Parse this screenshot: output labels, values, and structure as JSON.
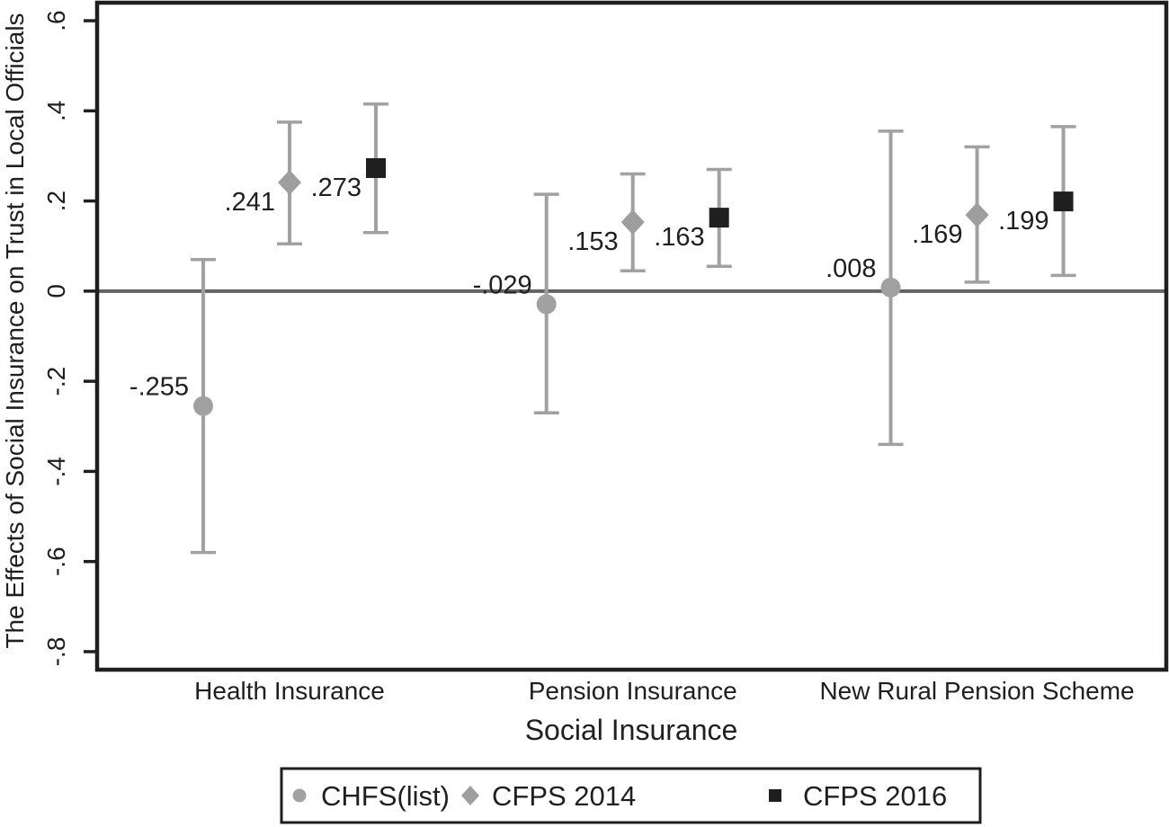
{
  "figure": {
    "background": "#ffffff",
    "text_color": "#1f1f1f",
    "frame_color": "#1f1f1f",
    "zero_line_color": "#636363",
    "error_bar_color": "#a1a1a1"
  },
  "chart_data": {
    "type": "scatter",
    "subtype": "coefficient-plot-with-confidence-intervals",
    "title": "",
    "xlabel": "Social Insurance",
    "ylabel": "The Effects of Social Insurance on Trust in Local Officials",
    "categories": [
      "Health Insurance",
      "Pension Insurance",
      "New Rural Pension Scheme"
    ],
    "y_tick_labels": [
      ".6",
      ".4",
      ".2",
      "0",
      "-.2",
      "-.4",
      "-.6",
      "-.8"
    ],
    "y_tick_values": [
      0.6,
      0.4,
      0.2,
      0,
      -0.2,
      -0.4,
      -0.6,
      -0.8
    ],
    "ylim": [
      -0.84,
      0.64
    ],
    "zero_line": 0,
    "grid": false,
    "legend_position": "bottom-outside",
    "series": [
      {
        "name": "CHFS(list)",
        "marker": "circle",
        "marker_color": "#a1a1a1",
        "error_color": "#a1a1a1",
        "label_placement": "above-left",
        "points": [
          {
            "category": "Health Insurance",
            "value": -0.255,
            "label": "-.255",
            "ci_low": -0.58,
            "ci_high": 0.07
          },
          {
            "category": "Pension Insurance",
            "value": -0.029,
            "label": "-.029",
            "ci_low": -0.27,
            "ci_high": 0.215
          },
          {
            "category": "New Rural Pension Scheme",
            "value": 0.008,
            "label": ".008",
            "ci_low": -0.34,
            "ci_high": 0.355
          }
        ]
      },
      {
        "name": "CFPS 2014",
        "marker": "diamond",
        "marker_color": "#9e9e9e",
        "error_color": "#a1a1a1",
        "label_placement": "below-left",
        "points": [
          {
            "category": "Health Insurance",
            "value": 0.241,
            "label": ".241",
            "ci_low": 0.105,
            "ci_high": 0.375
          },
          {
            "category": "Pension Insurance",
            "value": 0.153,
            "label": ".153",
            "ci_low": 0.045,
            "ci_high": 0.26
          },
          {
            "category": "New Rural Pension Scheme",
            "value": 0.169,
            "label": ".169",
            "ci_low": 0.02,
            "ci_high": 0.32
          }
        ]
      },
      {
        "name": "CFPS 2016",
        "marker": "square",
        "marker_color": "#1f1f1f",
        "error_color": "#a1a1a1",
        "label_placement": "below-left",
        "points": [
          {
            "category": "Health Insurance",
            "value": 0.273,
            "label": ".273",
            "ci_low": 0.13,
            "ci_high": 0.415
          },
          {
            "category": "Pension Insurance",
            "value": 0.163,
            "label": ".163",
            "ci_low": 0.055,
            "ci_high": 0.27
          },
          {
            "category": "New Rural Pension Scheme",
            "value": 0.199,
            "label": ".199",
            "ci_low": 0.035,
            "ci_high": 0.365
          }
        ]
      }
    ]
  }
}
